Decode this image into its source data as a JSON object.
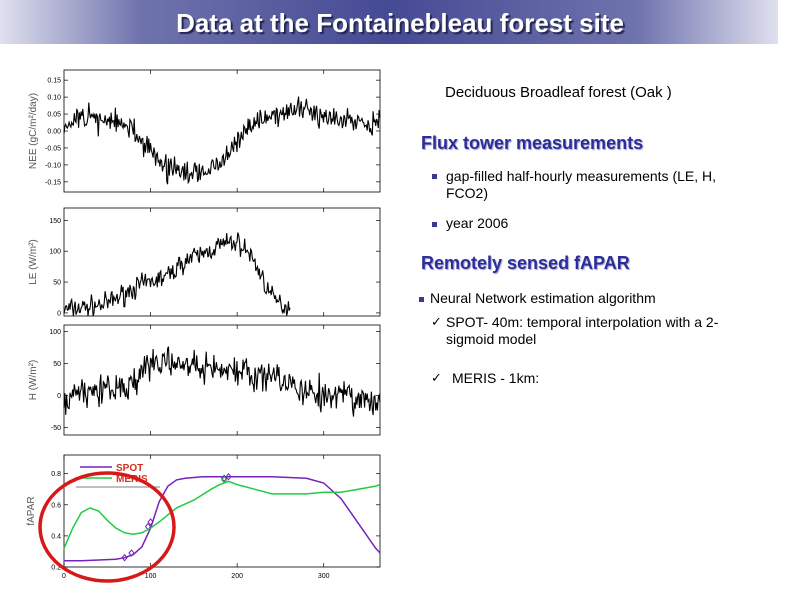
{
  "slide": {
    "title": "Data at the Fontainebleau forest site",
    "subtitle": "Deciduous Broadleaf forest (Oak )"
  },
  "sections": [
    {
      "heading": "Flux tower measurements",
      "bullets": [
        "gap-filled half-hourly measurements (LE, H, FCO2)",
        "year 2006"
      ]
    },
    {
      "heading": "Remotely sensed fAPAR",
      "bullets": [
        "Neural Network estimation algorithm"
      ],
      "sub_bullets": [
        {
          "prefix": "SPOT- 40m",
          "text": ": temporal interpolation with a 2-sigmoid model"
        },
        {
          "prefix": "MERIS - 1km",
          "text": ":"
        }
      ]
    }
  ],
  "colors": {
    "title_bar": "#454a94",
    "heading": "#2d2d9a",
    "spot": "#7722bb",
    "meris": "#22cc44",
    "highlight": "#d81818"
  },
  "chart_data": [
    {
      "type": "line",
      "ylabel": "NEE (gC/m²/day)",
      "ylim": [
        -0.18,
        0.18
      ],
      "xlim": [
        0,
        365
      ],
      "yticks": [
        -0.15,
        -0.1,
        -0.05,
        0.0,
        0.05,
        0.1,
        0.15
      ],
      "ytick_labels": [
        "-0.15",
        "-0.10",
        "-0.05",
        "0.00",
        "0.05",
        "0.10",
        "0.15"
      ],
      "series": [
        {
          "profile": [
            [
              0,
              0.02
            ],
            [
              30,
              0.04
            ],
            [
              55,
              0.03
            ],
            [
              80,
              0.0
            ],
            [
              100,
              -0.06
            ],
            [
              120,
              -0.11
            ],
            [
              150,
              -0.13
            ],
            [
              180,
              -0.1
            ],
            [
              200,
              -0.04
            ],
            [
              215,
              0.02
            ],
            [
              240,
              0.05
            ],
            [
              280,
              0.06
            ],
            [
              320,
              0.04
            ],
            [
              365,
              0.02
            ]
          ],
          "noise": 0.03,
          "points": 370,
          "seed": 11
        }
      ]
    },
    {
      "type": "line",
      "ylabel": "LE (W/m²)",
      "ylim": [
        -5,
        170
      ],
      "xlim": [
        0,
        365
      ],
      "yticks": [
        0,
        50,
        100,
        150
      ],
      "ytick_labels": [
        "0",
        "50",
        "100",
        "150"
      ],
      "series": [
        {
          "profile": [
            [
              0,
              5
            ],
            [
              30,
              10
            ],
            [
              50,
              15
            ],
            [
              80,
              40
            ],
            [
              100,
              50
            ],
            [
              120,
              60
            ],
            [
              140,
              85
            ],
            [
              160,
              95
            ],
            [
              180,
              110
            ],
            [
              200,
              115
            ],
            [
              215,
              95
            ],
            [
              230,
              55
            ],
            [
              240,
              25
            ],
            [
              255,
              10
            ],
            [
              290,
              8
            ],
            [
              330,
              5
            ],
            [
              365,
              3
            ]
          ],
          "noise": 14,
          "points": 370,
          "seed": 7,
          "clip_above_x": 262
        }
      ]
    },
    {
      "type": "line",
      "ylabel": "H (W/m²)",
      "ylim": [
        -62,
        110
      ],
      "xlim": [
        0,
        365
      ],
      "yticks": [
        -50,
        0,
        50,
        100
      ],
      "ytick_labels": [
        "-50",
        "0",
        "50",
        "100"
      ],
      "series": [
        {
          "profile": [
            [
              0,
              0
            ],
            [
              30,
              5
            ],
            [
              60,
              10
            ],
            [
              80,
              20
            ],
            [
              90,
              40
            ],
            [
              100,
              50
            ],
            [
              130,
              55
            ],
            [
              160,
              45
            ],
            [
              200,
              40
            ],
            [
              240,
              30
            ],
            [
              270,
              15
            ],
            [
              300,
              2
            ],
            [
              330,
              -5
            ],
            [
              365,
              -10
            ]
          ],
          "noise": 20,
          "points": 370,
          "seed": 3
        }
      ]
    },
    {
      "type": "line",
      "ylabel": "fAPAR",
      "ylim": [
        0.2,
        0.92
      ],
      "xlim": [
        0,
        365
      ],
      "yticks": [
        0.2,
        0.4,
        0.6,
        0.8
      ],
      "ytick_labels": [
        "0.2",
        "0.4",
        "0.6",
        "0.8"
      ],
      "xticks": [
        0,
        100,
        200,
        300
      ],
      "xtick_labels": [
        "0",
        "100",
        "200",
        "300"
      ],
      "legend": [
        "SPOT",
        "MERIS"
      ],
      "legend_position": "top-left",
      "series": [
        {
          "name": "SPOT",
          "x": [
            0,
            20,
            40,
            60,
            70,
            80,
            90,
            100,
            110,
            120,
            130,
            140,
            160,
            180,
            200,
            240,
            280,
            300,
            320,
            340,
            360,
            365
          ],
          "y": [
            0.24,
            0.24,
            0.245,
            0.25,
            0.26,
            0.28,
            0.33,
            0.45,
            0.62,
            0.72,
            0.76,
            0.77,
            0.78,
            0.78,
            0.78,
            0.78,
            0.77,
            0.74,
            0.64,
            0.48,
            0.32,
            0.29
          ],
          "markers": {
            "x": [
              70,
              78,
              97,
              100,
              185,
              190
            ],
            "y": [
              0.26,
              0.29,
              0.46,
              0.49,
              0.77,
              0.78
            ]
          }
        },
        {
          "name": "MERIS",
          "x": [
            0,
            10,
            20,
            30,
            40,
            50,
            60,
            70,
            80,
            90,
            100,
            110,
            130,
            150,
            170,
            180,
            190,
            200,
            220,
            240,
            260,
            280,
            300,
            320,
            340,
            360,
            365
          ],
          "y": [
            0.32,
            0.45,
            0.55,
            0.58,
            0.56,
            0.5,
            0.45,
            0.42,
            0.41,
            0.42,
            0.45,
            0.49,
            0.58,
            0.63,
            0.7,
            0.73,
            0.75,
            0.73,
            0.7,
            0.67,
            0.67,
            0.67,
            0.68,
            0.68,
            0.7,
            0.72,
            0.73
          ],
          "markers": {
            "x": [
              185
            ],
            "y": [
              0.76
            ]
          }
        }
      ]
    }
  ]
}
